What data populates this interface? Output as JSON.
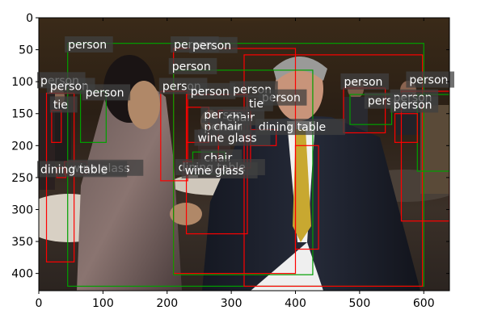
{
  "axes": {
    "x_ticks": [
      "0",
      "100",
      "200",
      "300",
      "400",
      "500",
      "600"
    ],
    "y_ticks": [
      "0",
      "50",
      "100",
      "150",
      "200",
      "250",
      "300",
      "350",
      "400"
    ],
    "xlim": [
      0,
      640
    ],
    "ylim": [
      427,
      0
    ]
  },
  "colors": {
    "box_red": "#ff0000",
    "box_green": "#00a000",
    "label_bg": "#404040"
  },
  "boxes": [
    {
      "color": "green",
      "x0": 45,
      "y0": 40,
      "x1": 600,
      "y1": 420
    },
    {
      "color": "red",
      "x0": 210,
      "y0": 48,
      "x1": 400,
      "y1": 400
    },
    {
      "color": "red",
      "x0": 320,
      "y0": 58,
      "x1": 598,
      "y1": 420
    },
    {
      "color": "red",
      "x0": 230,
      "y0": 120,
      "x1": 325,
      "y1": 338
    },
    {
      "color": "green",
      "x0": 210,
      "y0": 82,
      "x1": 427,
      "y1": 402
    },
    {
      "color": "red",
      "x0": 190,
      "y0": 115,
      "x1": 232,
      "y1": 255
    },
    {
      "color": "red",
      "x0": 12,
      "y0": 118,
      "x1": 55,
      "y1": 382
    },
    {
      "color": "green",
      "x0": 65,
      "y0": 115,
      "x1": 105,
      "y1": 195
    },
    {
      "color": "red",
      "x0": 400,
      "y0": 200,
      "x1": 436,
      "y1": 362
    },
    {
      "color": "red",
      "x0": 565,
      "y0": 115,
      "x1": 640,
      "y1": 318
    },
    {
      "color": "green",
      "x0": 590,
      "y0": 120,
      "x1": 640,
      "y1": 240
    },
    {
      "color": "red",
      "x0": 475,
      "y0": 110,
      "x1": 540,
      "y1": 180
    },
    {
      "color": "green",
      "x0": 485,
      "y0": 120,
      "x1": 550,
      "y1": 167
    },
    {
      "color": "red",
      "x0": 20,
      "y0": 145,
      "x1": 35,
      "y1": 195
    },
    {
      "color": "red",
      "x0": 280,
      "y0": 145,
      "x1": 330,
      "y1": 235
    },
    {
      "color": "red",
      "x0": 330,
      "y0": 175,
      "x1": 370,
      "y1": 200
    },
    {
      "color": "red",
      "x0": 40,
      "y0": 225,
      "x1": 75,
      "y1": 245
    },
    {
      "color": "red",
      "x0": 225,
      "y0": 225,
      "x1": 240,
      "y1": 245
    },
    {
      "color": "red",
      "x0": 28,
      "y0": 235,
      "x1": 42,
      "y1": 250
    },
    {
      "color": "green",
      "x0": 240,
      "y0": 210,
      "x1": 290,
      "y1": 245
    },
    {
      "color": "red",
      "x0": 555,
      "y0": 150,
      "x1": 590,
      "y1": 195
    },
    {
      "color": "red",
      "x0": 230,
      "y0": 140,
      "x1": 265,
      "y1": 195
    }
  ],
  "detections": [
    {
      "label": "person",
      "x": 43,
      "y": 48
    },
    {
      "label": "person",
      "x": 208,
      "y": 48
    },
    {
      "label": "person",
      "x": 237,
      "y": 49
    },
    {
      "label": "person",
      "x": 205,
      "y": 82
    },
    {
      "label": "person",
      "x": 0,
      "y": 104
    },
    {
      "label": "person",
      "x": 15,
      "y": 113
    },
    {
      "label": "person",
      "x": 70,
      "y": 123
    },
    {
      "label": "person",
      "x": 190,
      "y": 113
    },
    {
      "label": "person",
      "x": 234,
      "y": 121
    },
    {
      "label": "person",
      "x": 300,
      "y": 118
    },
    {
      "label": "person",
      "x": 345,
      "y": 131
    },
    {
      "label": "person",
      "x": 473,
      "y": 106
    },
    {
      "label": "person",
      "x": 575,
      "y": 103
    },
    {
      "label": "person",
      "x": 510,
      "y": 136
    },
    {
      "label": "person",
      "x": 550,
      "y": 131
    },
    {
      "label": "person",
      "x": 550,
      "y": 142
    },
    {
      "label": "tie",
      "x": 20,
      "y": 142
    },
    {
      "label": "tie",
      "x": 325,
      "y": 140
    },
    {
      "label": "person",
      "x": 255,
      "y": 158
    },
    {
      "label": "person",
      "x": 255,
      "y": 177
    },
    {
      "label": "chair",
      "x": 290,
      "y": 162
    },
    {
      "label": "chair",
      "x": 270,
      "y": 176
    },
    {
      "label": "dining table",
      "x": 340,
      "y": 177
    },
    {
      "label": "wine glass",
      "x": 245,
      "y": 194
    },
    {
      "label": "chair",
      "x": 255,
      "y": 225
    },
    {
      "label": "dining table",
      "x": 215,
      "y": 240
    },
    {
      "label": "wine glass",
      "x": 225,
      "y": 245
    },
    {
      "label": "wine glass",
      "x": 47,
      "y": 241
    },
    {
      "label": "dining table",
      "x": 0,
      "y": 243
    }
  ]
}
